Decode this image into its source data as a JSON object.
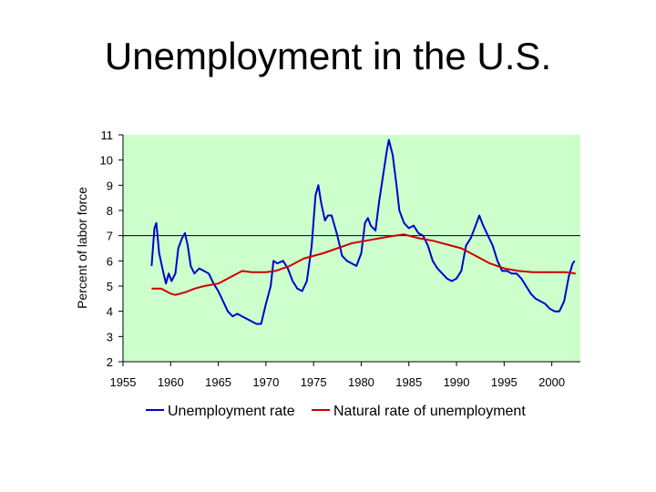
{
  "title": "Unemployment in the U.S.",
  "chart_data": {
    "type": "line",
    "title": "Unemployment in the U.S.",
    "xlabel": "",
    "ylabel": "Percent of labor force",
    "xlim": [
      1955,
      2003
    ],
    "ylim": [
      2,
      11
    ],
    "xticks": [
      1955,
      1960,
      1965,
      1970,
      1975,
      1980,
      1985,
      1990,
      1995,
      2000
    ],
    "yticks": [
      2,
      3,
      4,
      5,
      6,
      7,
      8,
      9,
      10,
      11
    ],
    "grid": false,
    "legend_position": "bottom",
    "background_color": "#ccffcc",
    "reference_line": {
      "y": 7,
      "color": "#000000"
    },
    "series": [
      {
        "name": "Unemployment rate",
        "color": "#0000cc",
        "points": [
          [
            1958.0,
            5.8
          ],
          [
            1958.3,
            7.3
          ],
          [
            1958.5,
            7.5
          ],
          [
            1958.8,
            6.3
          ],
          [
            1959.2,
            5.6
          ],
          [
            1959.5,
            5.1
          ],
          [
            1959.8,
            5.5
          ],
          [
            1960.1,
            5.2
          ],
          [
            1960.5,
            5.5
          ],
          [
            1960.8,
            6.5
          ],
          [
            1961.2,
            6.9
          ],
          [
            1961.5,
            7.1
          ],
          [
            1961.8,
            6.6
          ],
          [
            1962.1,
            5.8
          ],
          [
            1962.5,
            5.5
          ],
          [
            1963.0,
            5.7
          ],
          [
            1963.5,
            5.6
          ],
          [
            1964.0,
            5.5
          ],
          [
            1964.5,
            5.1
          ],
          [
            1965.0,
            4.8
          ],
          [
            1965.5,
            4.4
          ],
          [
            1966.0,
            4.0
          ],
          [
            1966.5,
            3.8
          ],
          [
            1967.0,
            3.9
          ],
          [
            1967.5,
            3.8
          ],
          [
            1968.0,
            3.7
          ],
          [
            1968.5,
            3.6
          ],
          [
            1969.0,
            3.5
          ],
          [
            1969.5,
            3.5
          ],
          [
            1970.0,
            4.3
          ],
          [
            1970.5,
            5.0
          ],
          [
            1970.8,
            6.0
          ],
          [
            1971.2,
            5.9
          ],
          [
            1971.8,
            6.0
          ],
          [
            1972.3,
            5.7
          ],
          [
            1972.8,
            5.2
          ],
          [
            1973.3,
            4.9
          ],
          [
            1973.8,
            4.8
          ],
          [
            1974.3,
            5.2
          ],
          [
            1974.8,
            6.6
          ],
          [
            1975.2,
            8.6
          ],
          [
            1975.5,
            9.0
          ],
          [
            1975.8,
            8.3
          ],
          [
            1976.2,
            7.6
          ],
          [
            1976.5,
            7.8
          ],
          [
            1976.9,
            7.8
          ],
          [
            1977.5,
            7.0
          ],
          [
            1978.0,
            6.2
          ],
          [
            1978.5,
            6.0
          ],
          [
            1979.0,
            5.9
          ],
          [
            1979.5,
            5.8
          ],
          [
            1980.0,
            6.3
          ],
          [
            1980.4,
            7.5
          ],
          [
            1980.7,
            7.7
          ],
          [
            1981.0,
            7.4
          ],
          [
            1981.5,
            7.2
          ],
          [
            1981.9,
            8.4
          ],
          [
            1982.3,
            9.4
          ],
          [
            1982.7,
            10.4
          ],
          [
            1982.9,
            10.8
          ],
          [
            1983.3,
            10.2
          ],
          [
            1983.7,
            9.0
          ],
          [
            1984.0,
            8.0
          ],
          [
            1984.5,
            7.5
          ],
          [
            1985.0,
            7.3
          ],
          [
            1985.5,
            7.4
          ],
          [
            1986.0,
            7.1
          ],
          [
            1986.5,
            7.0
          ],
          [
            1987.0,
            6.6
          ],
          [
            1987.5,
            6.0
          ],
          [
            1988.0,
            5.7
          ],
          [
            1988.5,
            5.5
          ],
          [
            1989.0,
            5.3
          ],
          [
            1989.5,
            5.2
          ],
          [
            1990.0,
            5.3
          ],
          [
            1990.5,
            5.6
          ],
          [
            1991.0,
            6.6
          ],
          [
            1991.5,
            6.9
          ],
          [
            1992.0,
            7.4
          ],
          [
            1992.4,
            7.8
          ],
          [
            1992.8,
            7.4
          ],
          [
            1993.3,
            7.0
          ],
          [
            1993.8,
            6.6
          ],
          [
            1994.3,
            6.0
          ],
          [
            1994.8,
            5.6
          ],
          [
            1995.3,
            5.6
          ],
          [
            1995.8,
            5.5
          ],
          [
            1996.3,
            5.5
          ],
          [
            1996.8,
            5.3
          ],
          [
            1997.3,
            5.0
          ],
          [
            1997.8,
            4.7
          ],
          [
            1998.3,
            4.5
          ],
          [
            1998.8,
            4.4
          ],
          [
            1999.3,
            4.3
          ],
          [
            1999.8,
            4.1
          ],
          [
            2000.3,
            4.0
          ],
          [
            2000.8,
            4.0
          ],
          [
            2001.3,
            4.4
          ],
          [
            2001.8,
            5.4
          ],
          [
            2002.2,
            5.9
          ],
          [
            2002.4,
            6.0
          ]
        ]
      },
      {
        "name": "Natural rate of unemployment",
        "color": "#cc0000",
        "points": [
          [
            1958.0,
            4.9
          ],
          [
            1959.0,
            4.9
          ],
          [
            1960.0,
            4.7
          ],
          [
            1960.5,
            4.65
          ],
          [
            1961.5,
            4.75
          ],
          [
            1962.5,
            4.9
          ],
          [
            1963.5,
            5.0
          ],
          [
            1965.0,
            5.1
          ],
          [
            1966.0,
            5.3
          ],
          [
            1967.0,
            5.5
          ],
          [
            1967.5,
            5.6
          ],
          [
            1968.5,
            5.55
          ],
          [
            1970.0,
            5.55
          ],
          [
            1971.0,
            5.6
          ],
          [
            1972.5,
            5.8
          ],
          [
            1974.0,
            6.1
          ],
          [
            1976.0,
            6.3
          ],
          [
            1977.5,
            6.5
          ],
          [
            1979.0,
            6.7
          ],
          [
            1980.5,
            6.8
          ],
          [
            1982.0,
            6.9
          ],
          [
            1983.5,
            7.0
          ],
          [
            1984.5,
            7.05
          ],
          [
            1986.0,
            6.9
          ],
          [
            1987.5,
            6.8
          ],
          [
            1989.0,
            6.65
          ],
          [
            1990.5,
            6.5
          ],
          [
            1992.0,
            6.2
          ],
          [
            1993.5,
            5.9
          ],
          [
            1995.0,
            5.7
          ],
          [
            1996.5,
            5.6
          ],
          [
            1998.0,
            5.55
          ],
          [
            2000.0,
            5.55
          ],
          [
            2001.5,
            5.55
          ],
          [
            2002.5,
            5.5
          ]
        ]
      }
    ]
  }
}
